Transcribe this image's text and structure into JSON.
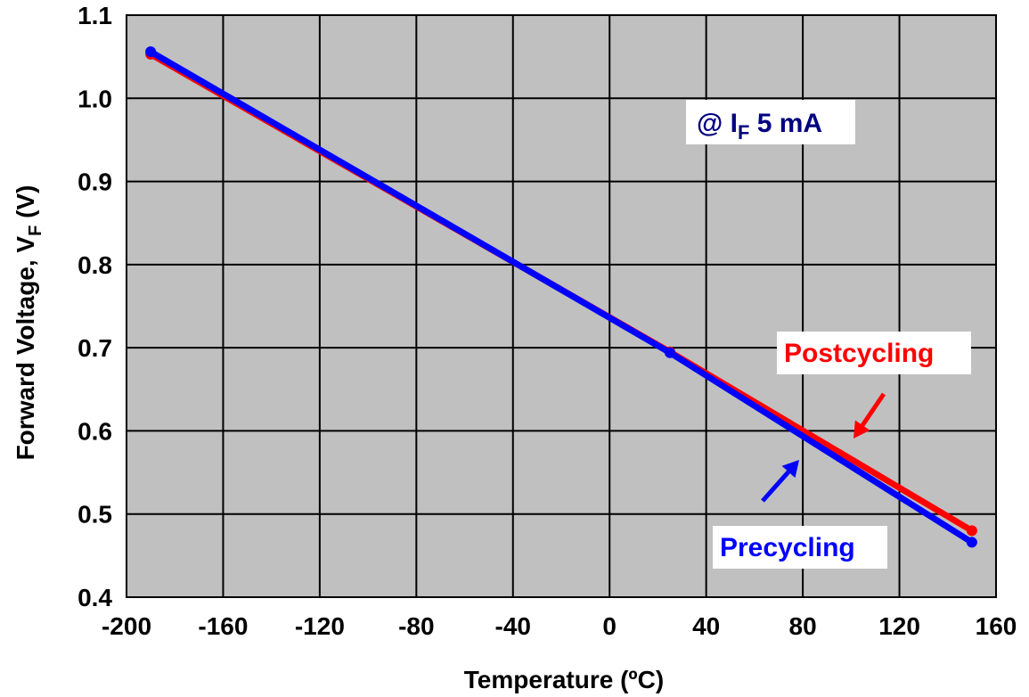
{
  "chart_data": {
    "type": "line",
    "xlabel": "Temperature (ºC)",
    "ylabel_main": "Forward Voltage, V",
    "ylabel_sub": "F",
    "ylabel_tail": " (V)",
    "xlim": [
      -200,
      160
    ],
    "ylim": [
      0.4,
      1.1
    ],
    "x_ticks": [
      -200,
      -160,
      -120,
      -80,
      -40,
      0,
      40,
      80,
      120,
      160
    ],
    "x_tick_labels": [
      "-200",
      "-160",
      "-120",
      "-80",
      "-40",
      "0",
      "40",
      "80",
      "120",
      "160"
    ],
    "y_ticks": [
      0.4,
      0.5,
      0.6,
      0.7,
      0.8,
      0.9,
      1.0,
      1.1
    ],
    "y_tick_labels": [
      "0.4",
      "0.5",
      "0.6",
      "0.7",
      "0.8",
      "0.9",
      "1.0",
      "1.1"
    ],
    "grid": true,
    "plot_background": "#c0c0c0",
    "series": [
      {
        "name": "Postcycling",
        "color": "#ff0000",
        "x": [
          -190,
          25,
          150
        ],
        "y": [
          1.053,
          0.695,
          0.48
        ]
      },
      {
        "name": "Precycling",
        "color": "#0000ff",
        "x": [
          -190,
          25,
          150
        ],
        "y": [
          1.056,
          0.694,
          0.466
        ]
      }
    ],
    "annotations": {
      "condition_prefix": "@ I",
      "condition_sub": "F",
      "condition_suffix": " 5 mA",
      "condition_color": "#000080"
    }
  }
}
